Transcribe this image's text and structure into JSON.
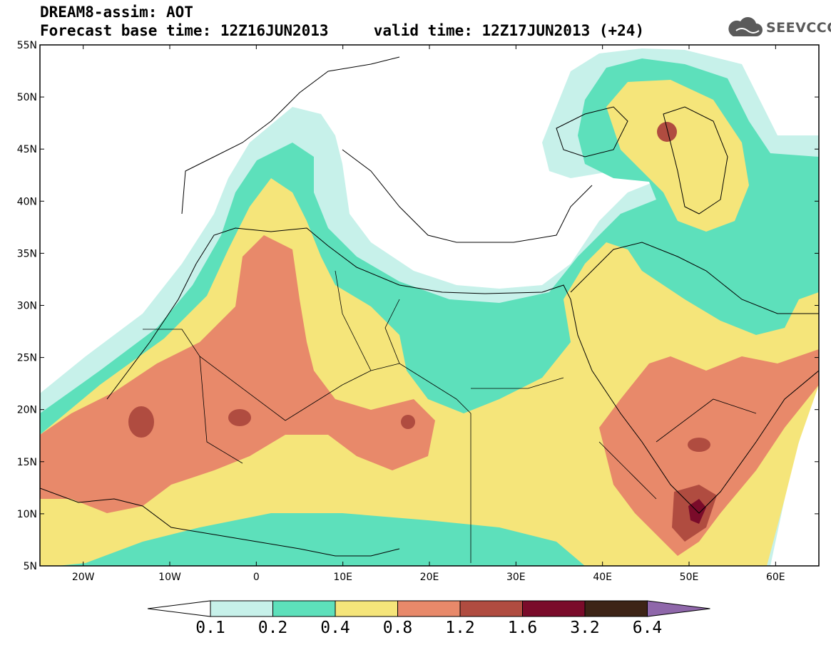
{
  "header": {
    "title_line1": "DREAM8-assim: AOT",
    "title_line2": "Forecast base time: 12Z16JUN2013     valid time: 12Z17JUN2013 (+24)",
    "logo_text": "SEEVCCC",
    "logo_icon": "cloud-icon"
  },
  "map": {
    "variable": "AOT",
    "lat_ticks": [
      "55N",
      "50N",
      "45N",
      "40N",
      "35N",
      "30N",
      "25N",
      "20N",
      "15N",
      "10N",
      "5N"
    ],
    "lon_ticks": [
      "20W",
      "10W",
      "0",
      "10E",
      "20E",
      "30E",
      "40E",
      "50E",
      "60E"
    ],
    "lat_range": [
      5,
      55
    ],
    "lon_range": [
      -25,
      65
    ],
    "land_fill": "#ffffff",
    "coastline_color": "#000000"
  },
  "colorbar": {
    "labels": [
      "0.1",
      "0.2",
      "0.4",
      "0.8",
      "1.2",
      "1.6",
      "3.2",
      "6.4"
    ],
    "colors": [
      "#ffffff",
      "#c7f1ea",
      "#5de0bb",
      "#f5e57a",
      "#e8896a",
      "#b04c40",
      "#7a0b2a",
      "#3d2416",
      "#8f67aa"
    ],
    "color_names": [
      "below 0.1",
      "0.1-0.2",
      "0.2-0.4",
      "0.4-0.8",
      "0.8-1.2",
      "1.2-1.6",
      "1.6-3.2",
      "3.2-6.4",
      "above 6.4"
    ]
  }
}
